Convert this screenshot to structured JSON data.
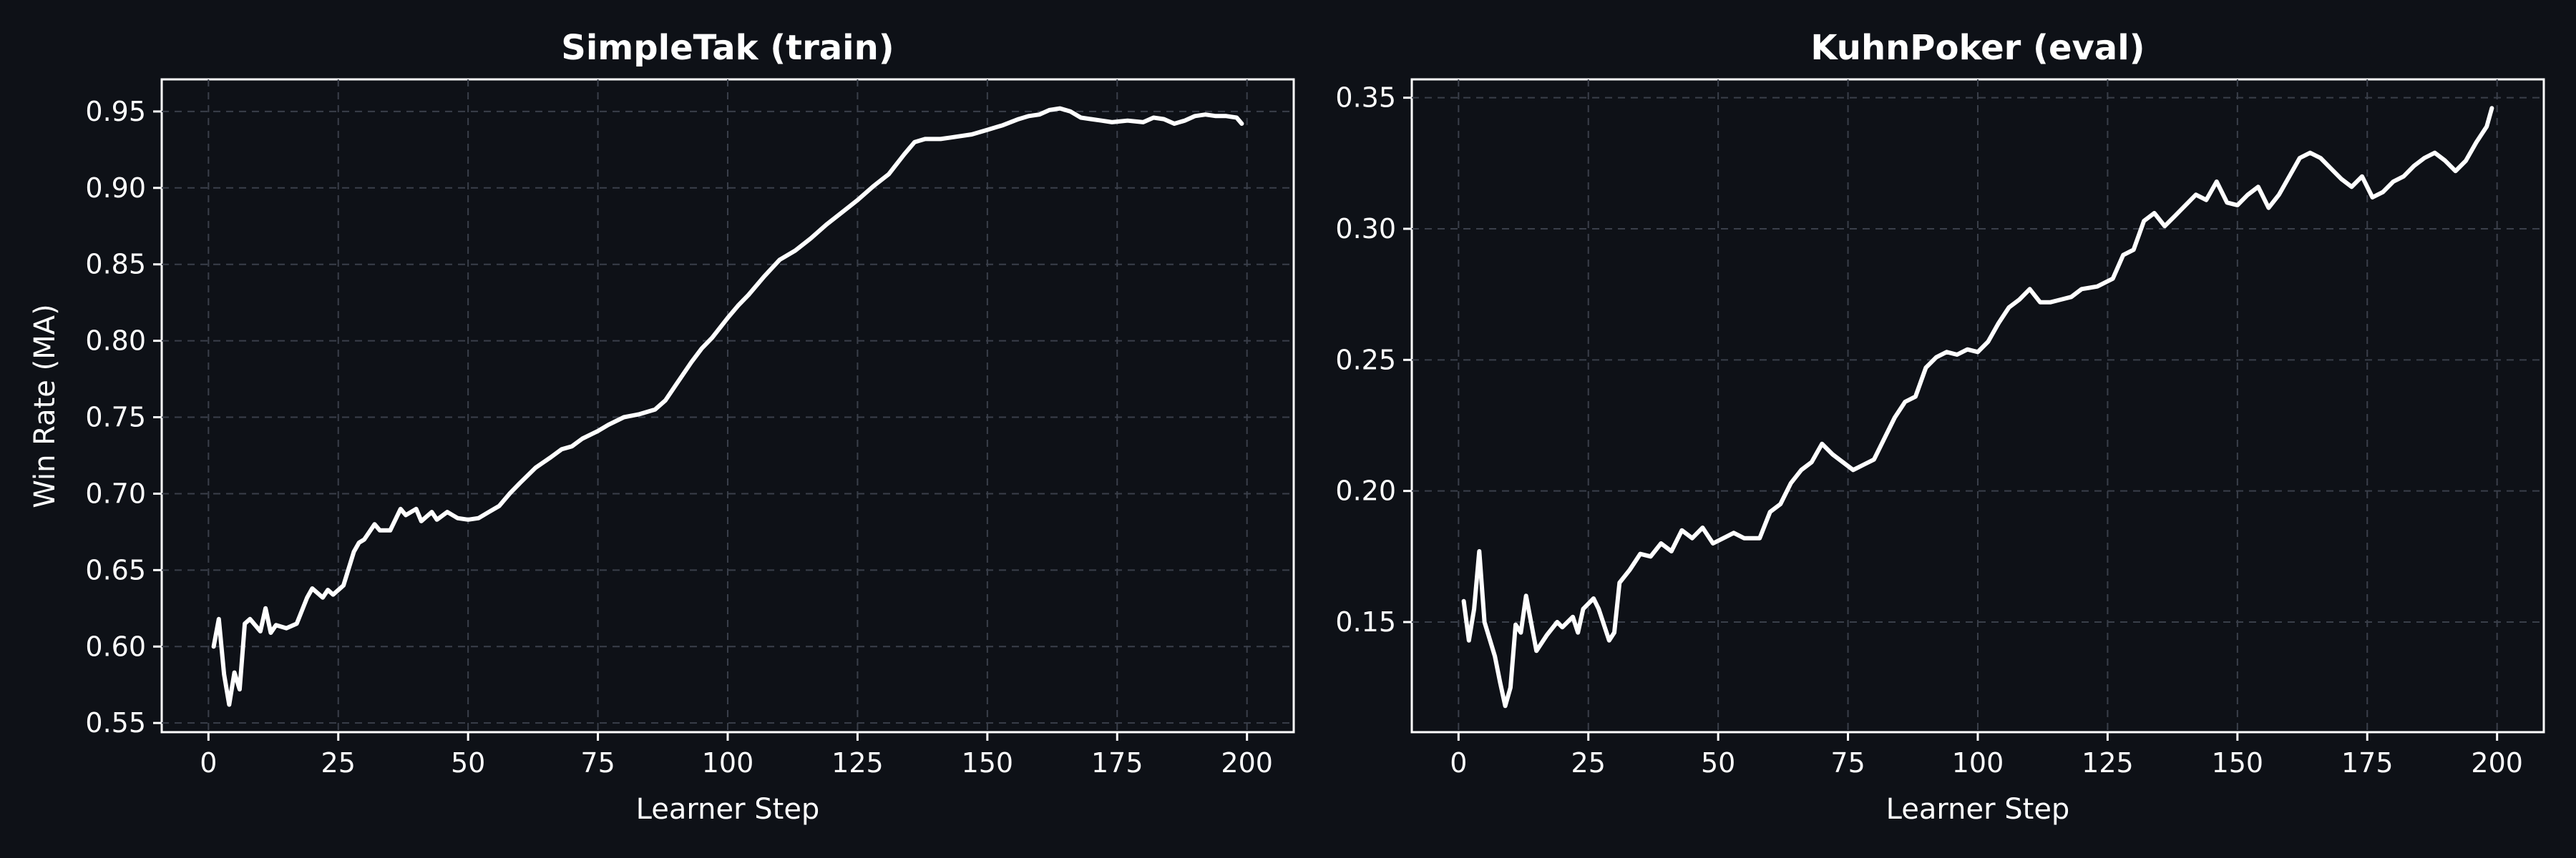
{
  "colors": {
    "background": "#0e1117",
    "line": "#ffffff",
    "grid": "#3a3f4a",
    "axes": "#ffffff"
  },
  "chart_data": [
    {
      "type": "line",
      "title": "SimpleTak (train)",
      "xlabel": "Learner Step",
      "ylabel": "Win Rate (MA)",
      "xlim": [
        -9,
        209
      ],
      "ylim": [
        0.544,
        0.971
      ],
      "xticks": [
        0,
        25,
        50,
        75,
        100,
        125,
        150,
        175,
        200
      ],
      "yticks": [
        0.55,
        0.6,
        0.65,
        0.7,
        0.75,
        0.8,
        0.85,
        0.9,
        0.95
      ],
      "ytick_labels": [
        "0.55",
        "0.60",
        "0.65",
        "0.70",
        "0.75",
        "0.80",
        "0.85",
        "0.90",
        "0.95"
      ],
      "grid": true,
      "series": [
        {
          "x": [
            1,
            2,
            3,
            4,
            5,
            6,
            7,
            8,
            10,
            11,
            12,
            13,
            15,
            17,
            19,
            20,
            22,
            23,
            24,
            26,
            28,
            29,
            30,
            32,
            33,
            35,
            37,
            38,
            40,
            41,
            43,
            44,
            46,
            48,
            50,
            52,
            54,
            56,
            58,
            60,
            63,
            66,
            68,
            70,
            72,
            75,
            77,
            80,
            83,
            86,
            88,
            90,
            93,
            95,
            97,
            100,
            102,
            104,
            107,
            110,
            113,
            116,
            119,
            122,
            125,
            128,
            131,
            134,
            136,
            138,
            141,
            143,
            147,
            150,
            153,
            156,
            158,
            160,
            162,
            164,
            166,
            168,
            170,
            172,
            174,
            177,
            180,
            182,
            184,
            186,
            188,
            190,
            192,
            194,
            196,
            198,
            199
          ],
          "y": [
            0.6,
            0.618,
            0.582,
            0.562,
            0.583,
            0.572,
            0.615,
            0.618,
            0.61,
            0.625,
            0.609,
            0.614,
            0.612,
            0.615,
            0.632,
            0.638,
            0.632,
            0.637,
            0.634,
            0.64,
            0.662,
            0.668,
            0.67,
            0.68,
            0.676,
            0.676,
            0.69,
            0.686,
            0.69,
            0.682,
            0.688,
            0.683,
            0.688,
            0.684,
            0.683,
            0.684,
            0.688,
            0.692,
            0.7,
            0.707,
            0.717,
            0.724,
            0.729,
            0.731,
            0.736,
            0.741,
            0.745,
            0.75,
            0.752,
            0.755,
            0.761,
            0.771,
            0.786,
            0.795,
            0.802,
            0.815,
            0.823,
            0.83,
            0.842,
            0.853,
            0.859,
            0.867,
            0.876,
            0.884,
            0.892,
            0.901,
            0.909,
            0.922,
            0.93,
            0.932,
            0.932,
            0.933,
            0.935,
            0.938,
            0.941,
            0.945,
            0.947,
            0.948,
            0.951,
            0.952,
            0.95,
            0.946,
            0.945,
            0.944,
            0.943,
            0.944,
            0.943,
            0.946,
            0.945,
            0.942,
            0.944,
            0.947,
            0.948,
            0.947,
            0.947,
            0.946,
            0.942
          ]
        }
      ]
    },
    {
      "type": "line",
      "title": "KuhnPoker (eval)",
      "xlabel": "Learner Step",
      "ylabel": "",
      "xlim": [
        -9,
        209
      ],
      "ylim": [
        0.108,
        0.357
      ],
      "xticks": [
        0,
        25,
        50,
        75,
        100,
        125,
        150,
        175,
        200
      ],
      "yticks": [
        0.15,
        0.2,
        0.25,
        0.3,
        0.35
      ],
      "ytick_labels": [
        "0.15",
        "0.20",
        "0.25",
        "0.30",
        "0.35"
      ],
      "grid": true,
      "series": [
        {
          "x": [
            1,
            2,
            3,
            4,
            5,
            7,
            8,
            9,
            10,
            11,
            12,
            13,
            15,
            17,
            19,
            20,
            22,
            23,
            24,
            26,
            27,
            29,
            30,
            31,
            33,
            35,
            37,
            39,
            41,
            43,
            45,
            47,
            49,
            51,
            53,
            55,
            58,
            60,
            62,
            64,
            66,
            68,
            70,
            72,
            74,
            76,
            78,
            80,
            82,
            84,
            86,
            88,
            90,
            92,
            94,
            96,
            98,
            100,
            102,
            104,
            106,
            108,
            110,
            112,
            114,
            116,
            118,
            120,
            123,
            126,
            128,
            130,
            132,
            134,
            136,
            138,
            140,
            142,
            144,
            146,
            148,
            150,
            152,
            154,
            156,
            158,
            160,
            162,
            164,
            166,
            168,
            170,
            172,
            174,
            176,
            178,
            180,
            182,
            184,
            186,
            188,
            190,
            192,
            194,
            196,
            198,
            199
          ],
          "y": [
            0.158,
            0.143,
            0.155,
            0.177,
            0.15,
            0.137,
            0.127,
            0.118,
            0.125,
            0.149,
            0.146,
            0.16,
            0.139,
            0.145,
            0.15,
            0.148,
            0.152,
            0.146,
            0.155,
            0.159,
            0.155,
            0.143,
            0.146,
            0.165,
            0.17,
            0.176,
            0.175,
            0.18,
            0.177,
            0.185,
            0.182,
            0.186,
            0.18,
            0.182,
            0.184,
            0.182,
            0.182,
            0.192,
            0.195,
            0.203,
            0.208,
            0.211,
            0.218,
            0.214,
            0.211,
            0.208,
            0.21,
            0.212,
            0.22,
            0.228,
            0.234,
            0.236,
            0.247,
            0.251,
            0.253,
            0.252,
            0.254,
            0.253,
            0.257,
            0.264,
            0.27,
            0.273,
            0.277,
            0.272,
            0.272,
            0.273,
            0.274,
            0.277,
            0.278,
            0.281,
            0.29,
            0.292,
            0.303,
            0.306,
            0.301,
            0.305,
            0.309,
            0.313,
            0.311,
            0.318,
            0.31,
            0.309,
            0.313,
            0.316,
            0.308,
            0.313,
            0.32,
            0.327,
            0.329,
            0.327,
            0.323,
            0.319,
            0.316,
            0.32,
            0.312,
            0.314,
            0.318,
            0.32,
            0.324,
            0.327,
            0.329,
            0.326,
            0.322,
            0.326,
            0.333,
            0.339,
            0.346
          ]
        }
      ]
    }
  ]
}
